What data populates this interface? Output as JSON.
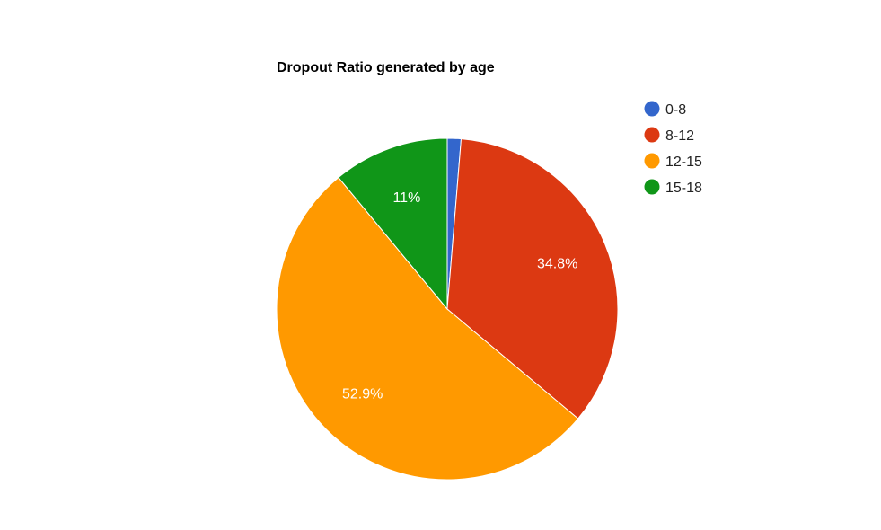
{
  "chart_data": {
    "type": "pie",
    "title": "Dropout Ratio generated by age",
    "legend_position": "right",
    "slices": [
      {
        "label": "0-8",
        "value": 1.3,
        "color": "#3366cc",
        "data_label": ""
      },
      {
        "label": "8-12",
        "value": 34.8,
        "color": "#dc3912",
        "data_label": "34.8%"
      },
      {
        "label": "12-15",
        "value": 52.9,
        "color": "#ff9900",
        "data_label": "52.9%"
      },
      {
        "label": "15-18",
        "value": 11.0,
        "color": "#109618",
        "data_label": "11%"
      }
    ]
  }
}
